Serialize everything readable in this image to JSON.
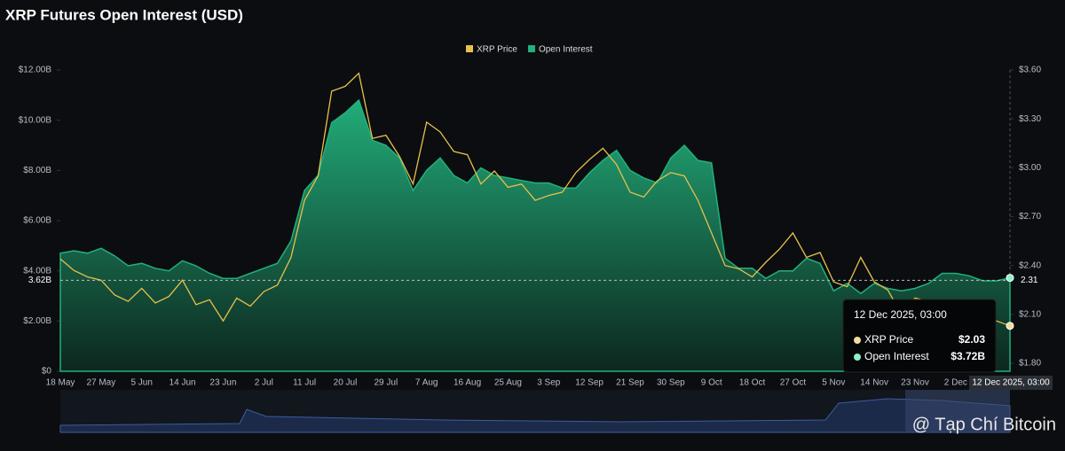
{
  "chart_data": {
    "type": "area-line",
    "title": "XRP Futures Open Interest (USD)",
    "categories": [
      "18 May",
      null,
      null,
      "27 May",
      null,
      null,
      "5 Jun",
      null,
      null,
      "14 Jun",
      null,
      null,
      "23 Jun",
      null,
      null,
      "2 Jul",
      null,
      null,
      "11 Jul",
      null,
      null,
      "20 Jul",
      null,
      null,
      "29 Jul",
      null,
      null,
      "7 Aug",
      null,
      null,
      "16 Aug",
      null,
      null,
      "25 Aug",
      null,
      null,
      "3 Sep",
      null,
      null,
      "12 Sep",
      null,
      null,
      "21 Sep",
      null,
      null,
      "30 Sep",
      null,
      null,
      "9 Oct",
      null,
      null,
      "18 Oct",
      null,
      null,
      "27 Oct",
      null,
      null,
      "5 Nov",
      null,
      null,
      "14 Nov",
      null,
      null,
      "23 Nov",
      null,
      null,
      "2 Dec",
      null,
      null,
      null,
      "12 Dec 2025, 03:00"
    ],
    "series": [
      {
        "name": "Open Interest",
        "color": "#22b07d",
        "values": [
          4.7,
          4.8,
          4.7,
          4.9,
          4.6,
          4.2,
          4.3,
          4.1,
          4.0,
          4.4,
          4.2,
          3.9,
          3.7,
          3.7,
          3.9,
          4.1,
          4.3,
          5.2,
          7.2,
          7.8,
          9.9,
          10.3,
          10.8,
          9.2,
          9.0,
          8.5,
          7.2,
          8.0,
          8.5,
          7.8,
          7.5,
          8.1,
          7.8,
          7.7,
          7.6,
          7.5,
          7.5,
          7.3,
          7.3,
          7.9,
          8.4,
          8.8,
          8.0,
          7.7,
          7.5,
          8.5,
          9.0,
          8.4,
          8.3,
          4.5,
          4.1,
          4.1,
          3.7,
          4.0,
          4.0,
          4.5,
          4.3,
          3.2,
          3.5,
          3.1,
          3.5,
          3.3,
          3.2,
          3.3,
          3.5,
          3.9,
          3.9,
          3.8,
          3.6,
          3.6,
          3.72
        ]
      },
      {
        "name": "XRP Price",
        "color": "#e8c04a",
        "axis": "y2",
        "values": [
          2.44,
          2.37,
          2.33,
          2.31,
          2.22,
          2.18,
          2.26,
          2.17,
          2.21,
          2.31,
          2.16,
          2.19,
          2.06,
          2.2,
          2.15,
          2.24,
          2.28,
          2.45,
          2.8,
          2.95,
          3.47,
          3.5,
          3.58,
          3.18,
          3.2,
          3.07,
          2.9,
          3.28,
          3.22,
          3.1,
          3.08,
          2.9,
          2.98,
          2.88,
          2.9,
          2.8,
          2.83,
          2.85,
          2.97,
          3.05,
          3.12,
          3.02,
          2.85,
          2.82,
          2.92,
          2.97,
          2.95,
          2.8,
          2.6,
          2.4,
          2.38,
          2.33,
          2.42,
          2.5,
          2.6,
          2.45,
          2.48,
          2.3,
          2.27,
          2.45,
          2.3,
          2.25,
          2.1,
          2.2,
          2.18,
          2.18,
          2.1,
          2.15,
          2.1,
          2.06,
          2.03
        ]
      }
    ],
    "legend_order": [
      1,
      0
    ],
    "ylim": [
      0,
      12
    ],
    "yticks": [
      {
        "value": 0,
        "label": "$0"
      },
      {
        "value": 2,
        "label": "$2.00B"
      },
      {
        "value": 4,
        "label": "$4.00B"
      },
      {
        "value": 6,
        "label": "$6.00B"
      },
      {
        "value": 8,
        "label": "$8.00B"
      },
      {
        "value": 10,
        "label": "$10.00B"
      },
      {
        "value": 12,
        "label": "$12.00B"
      }
    ],
    "y2lim": [
      1.8,
      3.6
    ],
    "y2ticks": [
      {
        "value": 1.8,
        "label": "$1.80"
      },
      {
        "value": 2.1,
        "label": "$2.10"
      },
      {
        "value": 2.4,
        "label": "$2.40"
      },
      {
        "value": 2.7,
        "label": "$2.70"
      },
      {
        "value": 3.0,
        "label": "$3.00"
      },
      {
        "value": 3.3,
        "label": "$3.30"
      },
      {
        "value": 3.6,
        "label": "$3.60"
      }
    ],
    "crosshair_y": {
      "value": 3.62,
      "label": "3.62B"
    },
    "crosshair_y2": 2.31,
    "tooltip": {
      "title": "12 Dec 2025, 03:00",
      "value_labels": [
        "$3.72B",
        "$2.03"
      ]
    },
    "watermark": "@ Tạp Chí Bitcoin"
  }
}
